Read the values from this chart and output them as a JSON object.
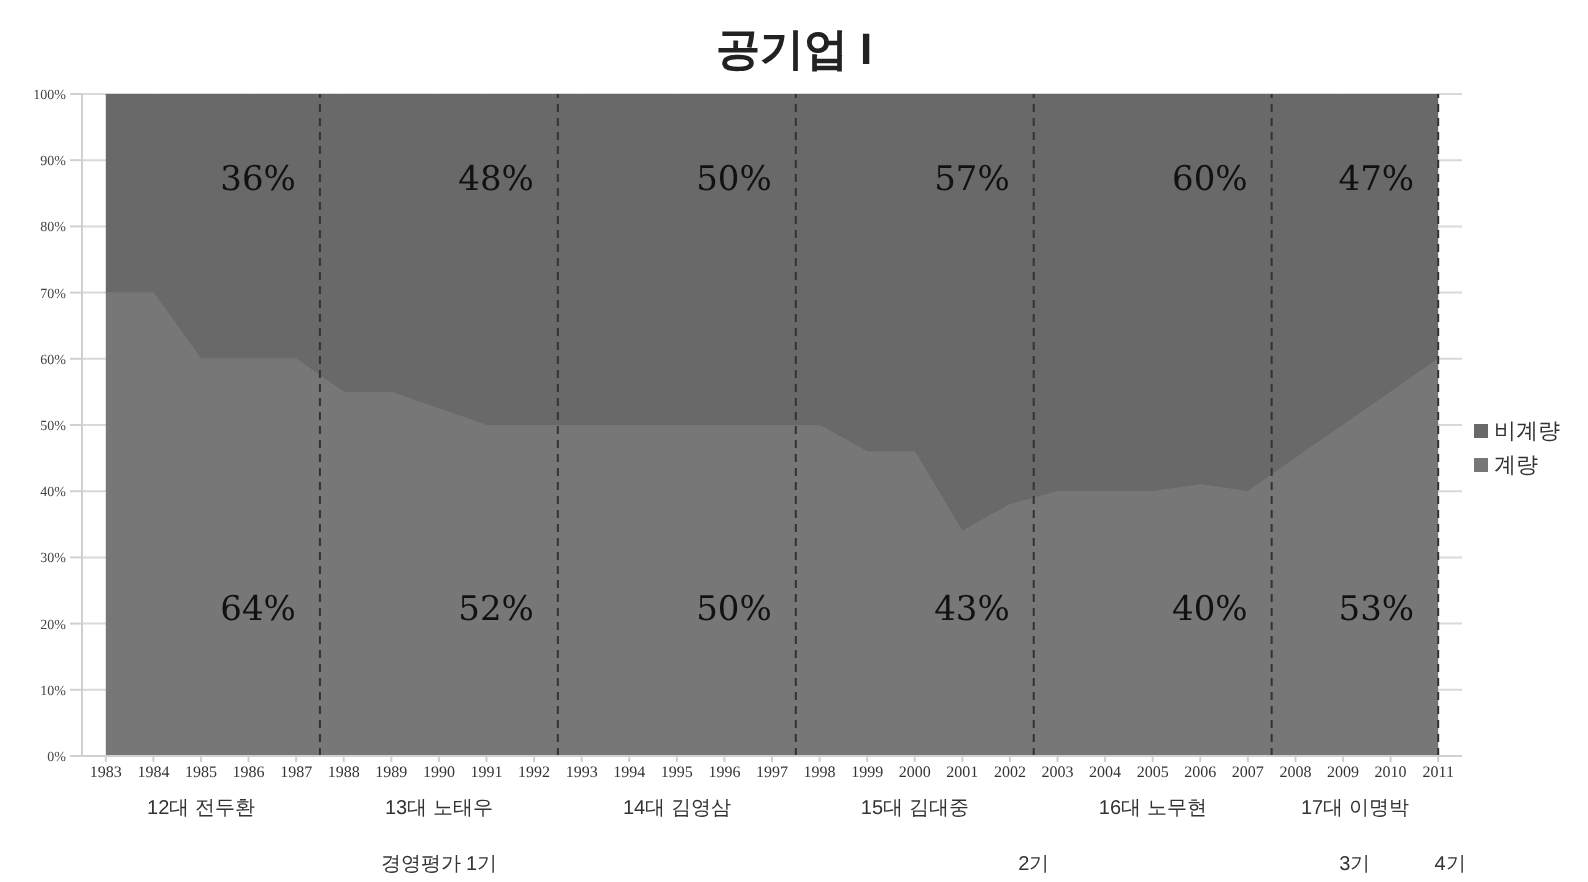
{
  "chart_data": {
    "type": "area",
    "title": "공기업 I",
    "stacked": true,
    "x": [
      1983,
      1984,
      1985,
      1986,
      1987,
      1988,
      1989,
      1990,
      1991,
      1992,
      1993,
      1994,
      1995,
      1996,
      1997,
      1998,
      1999,
      2000,
      2001,
      2002,
      2003,
      2004,
      2005,
      2006,
      2007,
      2008,
      2009,
      2010,
      2011
    ],
    "series": [
      {
        "name": "계량",
        "color": "#777777",
        "values": [
          70,
          70,
          60,
          60,
          60,
          55,
          55,
          52.5,
          50,
          50,
          50,
          50,
          50,
          50,
          50,
          50,
          46,
          46,
          34,
          38,
          40,
          40,
          40,
          41,
          40,
          45,
          50,
          55,
          60
        ]
      },
      {
        "name": "비계량",
        "color": "#696969",
        "values": [
          30,
          30,
          40,
          40,
          40,
          45,
          45,
          47.5,
          50,
          50,
          50,
          50,
          50,
          50,
          50,
          50,
          54,
          54,
          66,
          62,
          60,
          60,
          60,
          59,
          60,
          55,
          50,
          45,
          40
        ]
      }
    ],
    "xlim": [
      1982.5,
      2011.5
    ],
    "xticks": [
      1983,
      1984,
      1985,
      1986,
      1987,
      1988,
      1989,
      1990,
      1991,
      1992,
      1993,
      1994,
      1995,
      1996,
      1997,
      1998,
      1999,
      2000,
      2001,
      2002,
      2003,
      2004,
      2005,
      2006,
      2007,
      2008,
      2009,
      2010,
      2011
    ],
    "ylim": [
      0,
      100
    ],
    "yticks": [
      {
        "value": 0,
        "label": "0%"
      },
      {
        "value": 10,
        "label": "10%"
      },
      {
        "value": 20,
        "label": "20%"
      },
      {
        "value": 30,
        "label": "30%"
      },
      {
        "value": 40,
        "label": "40%"
      },
      {
        "value": 50,
        "label": "50%"
      },
      {
        "value": 60,
        "label": "60%"
      },
      {
        "value": 70,
        "label": "70%"
      },
      {
        "value": 80,
        "label": "80%"
      },
      {
        "value": 90,
        "label": "90%"
      },
      {
        "value": 100,
        "label": "100%"
      }
    ],
    "grid": "y",
    "legend": "right",
    "ref_lines": [
      {
        "axis": "x",
        "value": 1987.5,
        "color": "#333333",
        "line_style": "dashed"
      },
      {
        "axis": "x",
        "value": 1992.5,
        "color": "#333333",
        "line_style": "dashed"
      },
      {
        "axis": "x",
        "value": 1997.5,
        "color": "#333333",
        "line_style": "dashed"
      },
      {
        "axis": "x",
        "value": 2002.5,
        "color": "#333333",
        "line_style": "dashed"
      },
      {
        "axis": "x",
        "value": 2007.5,
        "color": "#333333",
        "line_style": "dashed"
      },
      {
        "axis": "x",
        "value": 2011,
        "color": "#333333",
        "line_style": "dashed"
      }
    ],
    "annotations": [
      "36%",
      "48%",
      "50%",
      "57%",
      "60%",
      "47%",
      "64%",
      "52%",
      "50%",
      "43%",
      "40%",
      "53%",
      "12대 전두환",
      "13대 노태우",
      "14대 김영삼",
      "15대 김대중",
      "16대 노무현",
      "17대 이명박",
      "경영평가 1기",
      "2기",
      "3기",
      "4기"
    ]
  }
}
